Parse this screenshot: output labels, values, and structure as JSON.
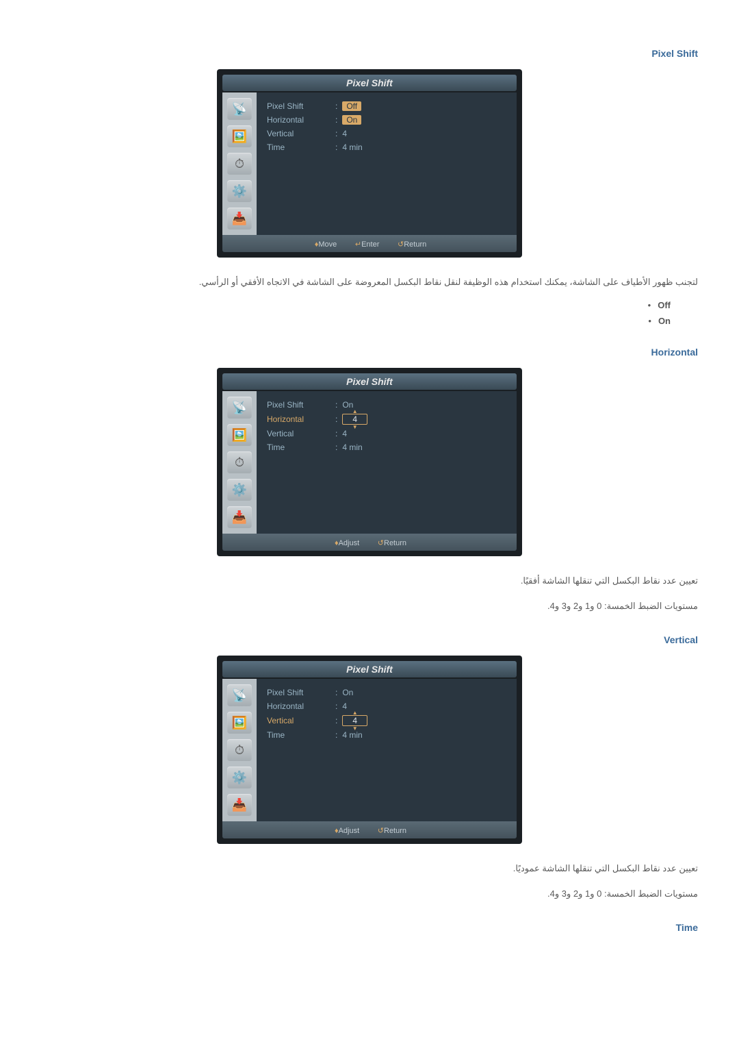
{
  "sections": {
    "pixelShift": {
      "title": "Pixel Shift",
      "desc": "لتجنب ظهور الأطياف على الشاشة، يمكنك استخدام هذه الوظيفة لنقل نقاط البكسل المعروضة على الشاشة في الاتجاه الأفقي أو الرأسي.",
      "bullets": {
        "off": "Off",
        "on": "On"
      }
    },
    "horizontal": {
      "title": "Horizontal",
      "desc": "تعيين عدد نقاط البكسل التي تنقلها الشاشة أفقيًا.",
      "levels": "مستويات الضبط الخمسة: 0 و1 و2 و3 و4."
    },
    "vertical": {
      "title": "Vertical",
      "desc": "تعيين عدد نقاط البكسل التي تنقلها الشاشة عموديًا.",
      "levels": "مستويات الضبط الخمسة: 0 و1 و2 و3 و4."
    },
    "time": {
      "title": "Time"
    }
  },
  "shots": {
    "header": "Pixel Shift",
    "icons": {
      "satellite": "📡",
      "photo": "🖼️",
      "clock": "⏱",
      "gear": "⚙️",
      "input": "📥"
    },
    "labels": {
      "pixelShift": "Pixel Shift",
      "horizontal": "Horizontal",
      "vertical": "Vertical",
      "time": "Time"
    },
    "footer": {
      "move": "Move",
      "enter": "Enter",
      "adjust": "Adjust",
      "return": "Return",
      "moveIcon": "♦",
      "enterIcon": "↵",
      "returnIcon": "↺"
    },
    "shot1": {
      "pixelShiftVal": "Off",
      "horizontalVal": "On",
      "verticalVal": "4",
      "timeVal": "4 min"
    },
    "shot2": {
      "pixelShiftVal": "On",
      "horizontalVal": "4",
      "verticalVal": "4",
      "timeVal": "4 min"
    },
    "shot3": {
      "pixelShiftVal": "On",
      "horizontalVal": "4",
      "verticalVal": "4",
      "timeVal": "4 min"
    }
  },
  "colors": {
    "accent": "#d8a968",
    "linkBlue": "#3a6a9a",
    "panelBg": "#2a3640",
    "sidebarBg": "#b8c0c5",
    "textMuted": "#9ab5c5"
  }
}
